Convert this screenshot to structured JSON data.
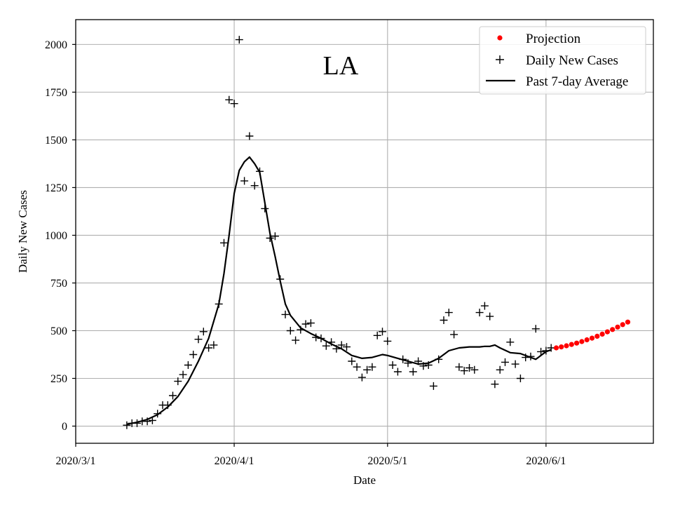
{
  "colors": {
    "projection": "#ff0000",
    "daily": "#000000",
    "average": "#000000",
    "grid": "#b0b0b0"
  },
  "chart_data": {
    "type": "line",
    "title": "LA",
    "xlabel": "Date",
    "ylabel": "Daily New Cases",
    "x_axis": "date",
    "xlim": [
      "2020-03-01",
      "2020-06-22"
    ],
    "ylim": [
      -90,
      2130
    ],
    "x_ticks": [
      "2020-03-01",
      "2020-04-01",
      "2020-05-01",
      "2020-06-01"
    ],
    "x_tick_labels": [
      "2020/3/1",
      "2020/4/1",
      "2020/5/1",
      "2020/6/1"
    ],
    "y_ticks": [
      0,
      250,
      500,
      750,
      1000,
      1250,
      1500,
      1750,
      2000
    ],
    "grid": true,
    "legend_position": "top-right",
    "series": [
      {
        "name": "Projection",
        "kind": "scatter",
        "marker": "dot",
        "color": "#ff0000",
        "x": [
          "2020-06-03",
          "2020-06-04",
          "2020-06-05",
          "2020-06-06",
          "2020-06-07",
          "2020-06-08",
          "2020-06-09",
          "2020-06-10",
          "2020-06-11",
          "2020-06-12",
          "2020-06-13",
          "2020-06-14",
          "2020-06-15",
          "2020-06-16",
          "2020-06-17"
        ],
        "y": [
          410,
          415,
          421,
          428,
          435,
          443,
          452,
          461,
          471,
          482,
          494,
          506,
          519,
          532,
          545
        ]
      },
      {
        "name": "Daily New Cases",
        "kind": "scatter",
        "marker": "plus",
        "color": "#000000",
        "x": [
          "2020-03-11",
          "2020-03-12",
          "2020-03-13",
          "2020-03-14",
          "2020-03-15",
          "2020-03-16",
          "2020-03-17",
          "2020-03-18",
          "2020-03-19",
          "2020-03-20",
          "2020-03-21",
          "2020-03-22",
          "2020-03-23",
          "2020-03-24",
          "2020-03-25",
          "2020-03-26",
          "2020-03-27",
          "2020-03-28",
          "2020-03-29",
          "2020-03-30",
          "2020-03-31",
          "2020-04-01",
          "2020-04-02",
          "2020-04-03",
          "2020-04-04",
          "2020-04-05",
          "2020-04-06",
          "2020-04-07",
          "2020-04-08",
          "2020-04-09",
          "2020-04-10",
          "2020-04-11",
          "2020-04-12",
          "2020-04-13",
          "2020-04-14",
          "2020-04-15",
          "2020-04-16",
          "2020-04-17",
          "2020-04-18",
          "2020-04-19",
          "2020-04-20",
          "2020-04-21",
          "2020-04-22",
          "2020-04-23",
          "2020-04-24",
          "2020-04-25",
          "2020-04-26",
          "2020-04-27",
          "2020-04-28",
          "2020-04-29",
          "2020-04-30",
          "2020-05-01",
          "2020-05-02",
          "2020-05-03",
          "2020-05-04",
          "2020-05-05",
          "2020-05-06",
          "2020-05-07",
          "2020-05-08",
          "2020-05-09",
          "2020-05-10",
          "2020-05-11",
          "2020-05-12",
          "2020-05-13",
          "2020-05-14",
          "2020-05-15",
          "2020-05-16",
          "2020-05-17",
          "2020-05-18",
          "2020-05-19",
          "2020-05-20",
          "2020-05-21",
          "2020-05-22",
          "2020-05-23",
          "2020-05-24",
          "2020-05-25",
          "2020-05-26",
          "2020-05-27",
          "2020-05-28",
          "2020-05-29",
          "2020-05-30",
          "2020-05-31",
          "2020-06-01",
          "2020-06-02"
        ],
        "y": [
          5,
          15,
          15,
          25,
          25,
          30,
          65,
          110,
          110,
          160,
          235,
          270,
          320,
          375,
          455,
          495,
          410,
          425,
          640,
          960,
          1710,
          1690,
          2025,
          1285,
          1520,
          1260,
          1335,
          1140,
          985,
          995,
          770,
          585,
          500,
          450,
          505,
          535,
          540,
          465,
          460,
          420,
          440,
          405,
          425,
          415,
          340,
          310,
          255,
          295,
          310,
          475,
          495,
          445,
          320,
          285,
          350,
          330,
          285,
          340,
          315,
          320,
          210,
          350,
          555,
          595,
          480,
          310,
          290,
          305,
          295,
          595,
          630,
          575,
          220,
          295,
          335,
          440,
          325,
          250,
          360,
          365,
          510,
          390,
          395,
          410
        ]
      },
      {
        "name": "Past 7-day Average",
        "kind": "line",
        "color": "#000000",
        "x": [
          "2020-03-11",
          "2020-03-13",
          "2020-03-15",
          "2020-03-17",
          "2020-03-19",
          "2020-03-21",
          "2020-03-23",
          "2020-03-25",
          "2020-03-27",
          "2020-03-29",
          "2020-03-30",
          "2020-03-31",
          "2020-04-01",
          "2020-04-02",
          "2020-04-03",
          "2020-04-04",
          "2020-04-05",
          "2020-04-06",
          "2020-04-07",
          "2020-04-08",
          "2020-04-09",
          "2020-04-10",
          "2020-04-11",
          "2020-04-12",
          "2020-04-14",
          "2020-04-16",
          "2020-04-18",
          "2020-04-20",
          "2020-04-22",
          "2020-04-24",
          "2020-04-26",
          "2020-04-28",
          "2020-04-30",
          "2020-05-01",
          "2020-05-03",
          "2020-05-05",
          "2020-05-07",
          "2020-05-09",
          "2020-05-11",
          "2020-05-13",
          "2020-05-15",
          "2020-05-17",
          "2020-05-19",
          "2020-05-20",
          "2020-05-21",
          "2020-05-22",
          "2020-05-23",
          "2020-05-25",
          "2020-05-27",
          "2020-05-29",
          "2020-05-30",
          "2020-05-31",
          "2020-06-01",
          "2020-06-02"
        ],
        "y": [
          10,
          20,
          35,
          60,
          100,
          155,
          235,
          340,
          460,
          640,
          800,
          1000,
          1220,
          1340,
          1385,
          1410,
          1375,
          1330,
          1170,
          1010,
          890,
          760,
          640,
          580,
          515,
          485,
          460,
          430,
          405,
          370,
          355,
          360,
          375,
          370,
          355,
          340,
          325,
          330,
          355,
          395,
          410,
          415,
          415,
          418,
          418,
          425,
          410,
          385,
          380,
          360,
          350,
          370,
          390,
          400
        ]
      }
    ]
  }
}
